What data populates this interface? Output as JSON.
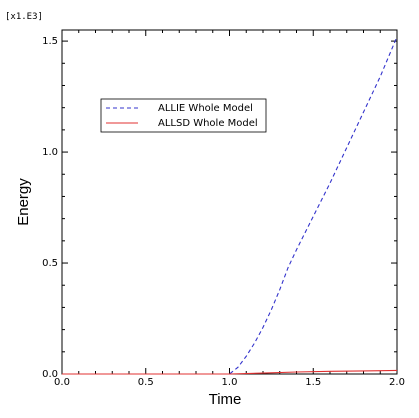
{
  "chart_data": {
    "type": "line",
    "title": "",
    "xlabel": "Time",
    "ylabel": "Energy",
    "y_multiplier": "[x1.E3]",
    "xlim": [
      0.0,
      2.0
    ],
    "ylim": [
      0.0,
      1.55
    ],
    "x_ticks": [
      0.0,
      0.5,
      1.0,
      1.5,
      2.0
    ],
    "x_tick_labels": [
      "0.0",
      "0.5",
      "1.0",
      "1.5",
      "2.0"
    ],
    "y_ticks": [
      0.0,
      0.5,
      1.0,
      1.5
    ],
    "y_tick_labels": [
      "0.0",
      "0.5",
      "1.0",
      "1.5"
    ],
    "grid": false,
    "legend_position": "upper-left inside",
    "series": [
      {
        "name": "ALLIE Whole Model",
        "color": "#3333cc",
        "style": "dashed",
        "x": [
          0.0,
          1.0,
          1.05,
          1.1,
          1.15,
          1.2,
          1.25,
          1.3,
          1.35,
          1.4,
          1.5,
          1.6,
          1.7,
          1.8,
          1.9,
          2.0
        ],
        "y": [
          0.0,
          0.0,
          0.03,
          0.08,
          0.14,
          0.21,
          0.29,
          0.38,
          0.48,
          0.56,
          0.71,
          0.86,
          1.02,
          1.18,
          1.34,
          1.52
        ]
      },
      {
        "name": "ALLSD Whole Model",
        "color": "#e03030",
        "style": "solid",
        "x": [
          0.0,
          1.0,
          1.2,
          1.4,
          1.6,
          1.8,
          2.0
        ],
        "y": [
          0.0,
          0.0,
          0.004,
          0.009,
          0.012,
          0.014,
          0.016
        ]
      }
    ]
  }
}
